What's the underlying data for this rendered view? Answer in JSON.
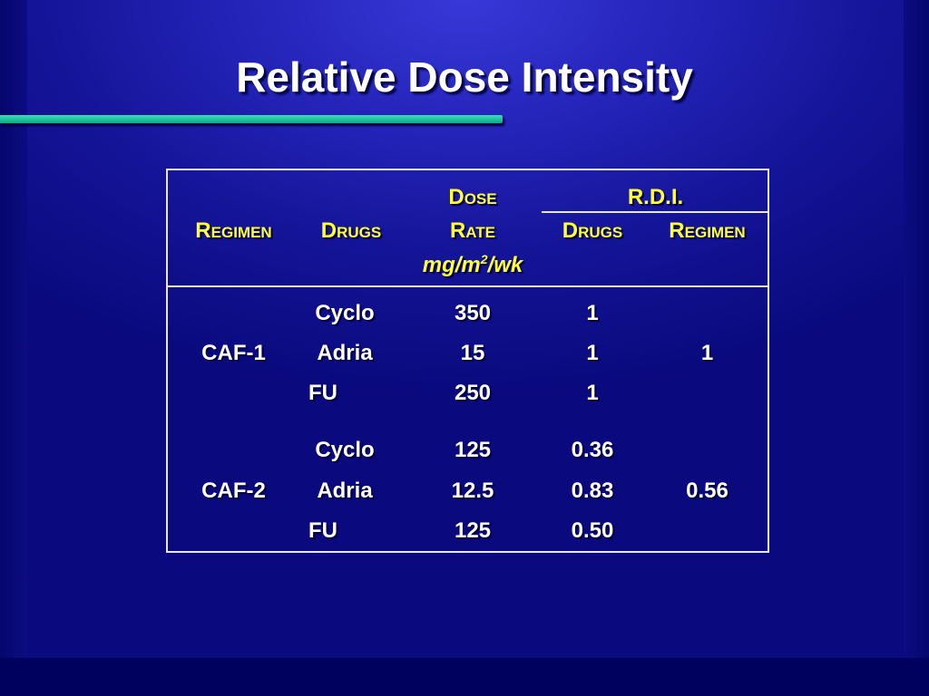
{
  "slide": {
    "title": "Relative Dose Intensity"
  },
  "table": {
    "headers": {
      "regimen": "Regimen",
      "drugs": "Drugs",
      "dose_line1": "Dose",
      "dose_line2": "Rate",
      "dose_unit_base": "mg/m",
      "dose_unit_sup": "2",
      "dose_unit_tail": "/wk",
      "rdi": "R.D.I.",
      "rdi_drugs": "Drugs",
      "rdi_regimen": "Regimen"
    },
    "groups": [
      {
        "regimen": "CAF-1",
        "regimen_rdi": "1",
        "rows": [
          {
            "drug": "Cyclo",
            "dose": "350",
            "rdi": "1"
          },
          {
            "drug": "Adria",
            "dose": "15",
            "rdi": "1"
          },
          {
            "drug": "FU",
            "dose": "250",
            "rdi": "1"
          }
        ]
      },
      {
        "regimen": "CAF-2",
        "regimen_rdi": "0.56",
        "rows": [
          {
            "drug": "Cyclo",
            "dose": "125",
            "rdi": "0.36"
          },
          {
            "drug": "Adria",
            "dose": "12.5",
            "rdi": "0.83"
          },
          {
            "drug": "FU",
            "dose": "125",
            "rdi": "0.50"
          }
        ]
      }
    ]
  },
  "colors": {
    "header_text": "#ffff33",
    "body_text": "#ffffff",
    "accent_bar": "#20c8a0",
    "background": "#2626bd"
  }
}
